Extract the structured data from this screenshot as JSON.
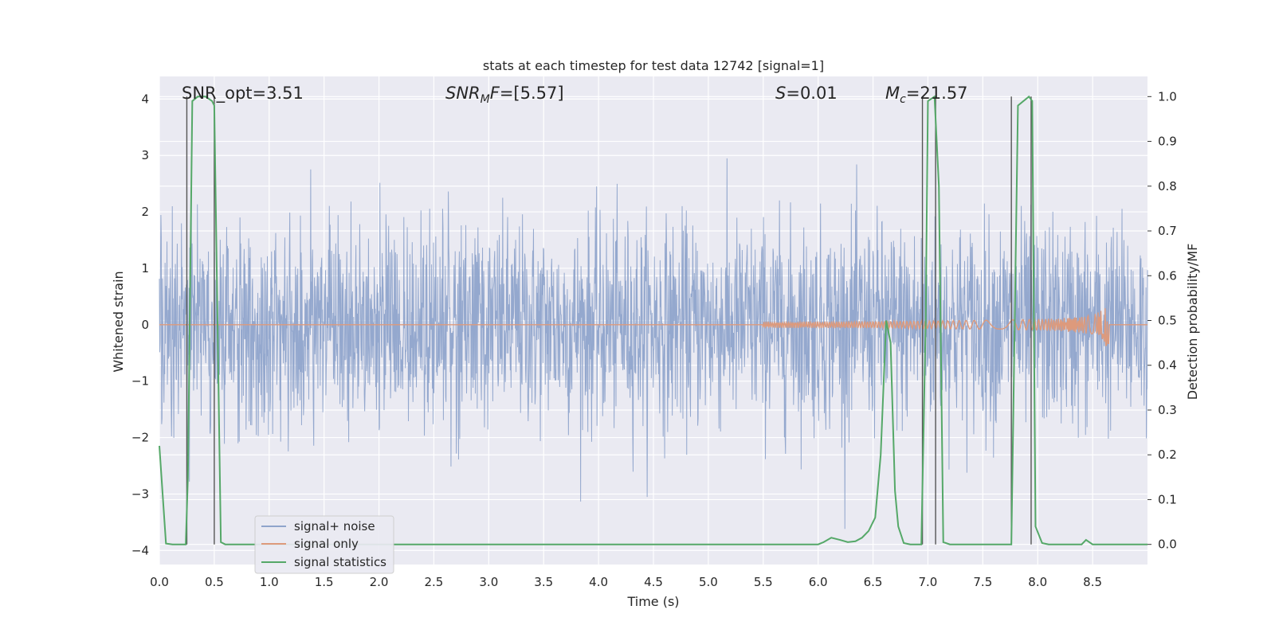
{
  "chart_data": {
    "type": "line",
    "title": "stats at each timestep for test data 12742 [signal=1]",
    "xlabel": "Time (s)",
    "ylabel_left": "Whitened strain",
    "ylabel_right": "Detection probability/MF",
    "xlim": [
      0.0,
      9.0
    ],
    "ylim_left": [
      -4.25,
      4.4
    ],
    "ylim_right": [
      -0.045,
      1.045
    ],
    "xticks": [
      "0.0",
      "0.5",
      "1.0",
      "1.5",
      "2.0",
      "2.5",
      "3.0",
      "3.5",
      "4.0",
      "4.5",
      "5.0",
      "5.5",
      "6.0",
      "6.5",
      "7.0",
      "7.5",
      "8.0",
      "8.5"
    ],
    "yticks_left": [
      "4",
      "3",
      "2",
      "1",
      "0",
      "−1",
      "−2",
      "−3",
      "−4"
    ],
    "yticks_right": [
      "1.0",
      "0.9",
      "0.8",
      "0.7",
      "0.6",
      "0.5",
      "0.4",
      "0.3",
      "0.2",
      "0.1",
      "0.0"
    ],
    "annotations": {
      "snr_opt": "SNR_opt=3.51",
      "snr_mf_base": "SNR",
      "snr_mf_sub": "M",
      "snr_mf_rest": "F=[5.57]",
      "s_italic": "S",
      "s_rest": "=0.01",
      "mc_base": "M",
      "mc_sub": "c",
      "mc_rest": "=21.57"
    },
    "legend": {
      "location": "lower-left",
      "entries": [
        "signal+ noise",
        "signal only",
        "signal statistics"
      ]
    },
    "series": [
      {
        "name": "signal+ noise",
        "kind": "noise",
        "approx_std": 0.9,
        "color": "#8fa4cb"
      },
      {
        "name": "signal only",
        "kind": "chirp",
        "start": 5.5,
        "end": 8.65,
        "peak_amplitude": 0.6,
        "color": "#dd9a7c"
      },
      {
        "name": "signal statistics",
        "color": "#55a868",
        "x": [
          0.0,
          0.06,
          0.12,
          0.18,
          0.24,
          0.26,
          0.3,
          0.35,
          0.42,
          0.48,
          0.5,
          0.56,
          0.6,
          1.0,
          2.0,
          3.0,
          4.0,
          5.0,
          5.5,
          5.8,
          5.9,
          6.0,
          6.05,
          6.12,
          6.2,
          6.27,
          6.34,
          6.4,
          6.46,
          6.52,
          6.57,
          6.62,
          6.66,
          6.7,
          6.73,
          6.78,
          6.84,
          6.9,
          6.94,
          6.98,
          7.0,
          7.06,
          7.1,
          7.14,
          7.2,
          7.26,
          7.3,
          7.5,
          7.6,
          7.7,
          7.76,
          7.82,
          7.92,
          7.95,
          7.98,
          8.04,
          8.1,
          8.2,
          8.4,
          8.44,
          8.5,
          8.6,
          8.7,
          8.8,
          9.0
        ],
        "y": [
          0.22,
          0.002,
          0.0,
          0.0,
          0.0,
          0.15,
          0.99,
          1.0,
          1.0,
          0.99,
          0.98,
          0.005,
          0.0,
          0.0,
          0.0,
          0.0,
          0.0,
          0.0,
          0.0,
          0.0,
          0.0,
          0.0,
          0.005,
          0.015,
          0.01,
          0.005,
          0.007,
          0.015,
          0.03,
          0.06,
          0.2,
          0.5,
          0.45,
          0.12,
          0.04,
          0.003,
          0.0,
          0.0,
          0.0,
          0.5,
          0.99,
          1.0,
          0.8,
          0.005,
          0.0,
          0.0,
          0.0,
          0.0,
          0.0,
          0.0,
          0.0,
          0.98,
          1.0,
          0.99,
          0.04,
          0.003,
          0.0,
          0.0,
          0.0,
          0.01,
          0.0,
          0.0,
          0.0,
          0.0,
          0.0
        ]
      }
    ],
    "vertical_markers_x": [
      0.25,
      0.5,
      6.95,
      7.07,
      7.76,
      7.94
    ]
  }
}
